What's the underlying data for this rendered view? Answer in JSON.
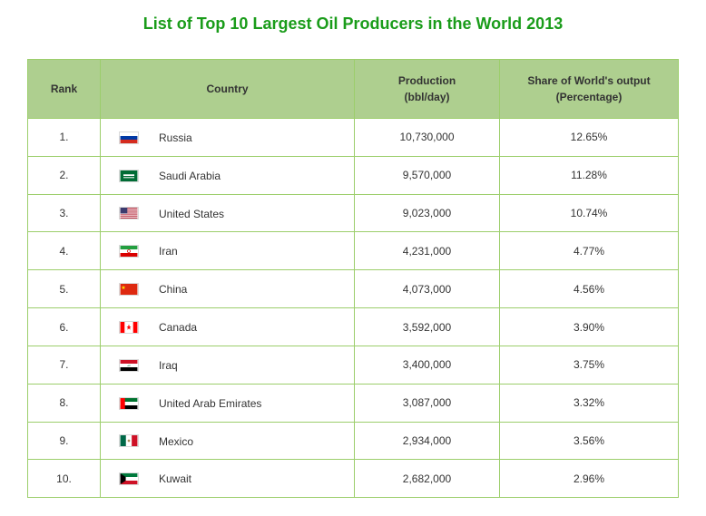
{
  "title": "List of Top 10 Largest Oil Producers in the World 2013",
  "title_color": "#1a9c1a",
  "header_bg": "#aecf8f",
  "header_fg": "#333333",
  "row_bg": "#ffffff",
  "row_fg": "#333333",
  "border_color": "#9cce6b",
  "columns": {
    "rank": "Rank",
    "country": "Country",
    "production_line1": "Production",
    "production_line2": "(bbl/day)",
    "share_line1": "Share of World's output",
    "share_line2": "(Percentage)"
  },
  "rows": [
    {
      "rank": "1.",
      "country": "Russia",
      "production": "10,730,000",
      "share": "12.65%",
      "flag": "ru"
    },
    {
      "rank": "2.",
      "country": "Saudi Arabia",
      "production": "9,570,000",
      "share": "11.28%",
      "flag": "sa"
    },
    {
      "rank": "3.",
      "country": "United States",
      "production": "9,023,000",
      "share": "10.74%",
      "flag": "us"
    },
    {
      "rank": "4.",
      "country": "Iran",
      "production": "4,231,000",
      "share": "4.77%",
      "flag": "ir"
    },
    {
      "rank": "5.",
      "country": "China",
      "production": "4,073,000",
      "share": "4.56%",
      "flag": "cn"
    },
    {
      "rank": "6.",
      "country": "Canada",
      "production": "3,592,000",
      "share": "3.90%",
      "flag": "ca"
    },
    {
      "rank": "7.",
      "country": "Iraq",
      "production": "3,400,000",
      "share": "3.75%",
      "flag": "iq"
    },
    {
      "rank": "8.",
      "country": "United Arab Emirates",
      "production": "3,087,000",
      "share": "3.32%",
      "flag": "ae"
    },
    {
      "rank": "9.",
      "country": "Mexico",
      "production": "2,934,000",
      "share": "3.56%",
      "flag": "mx"
    },
    {
      "rank": "10.",
      "country": "Kuwait",
      "production": "2,682,000",
      "share": "2.96%",
      "flag": "kw"
    }
  ]
}
